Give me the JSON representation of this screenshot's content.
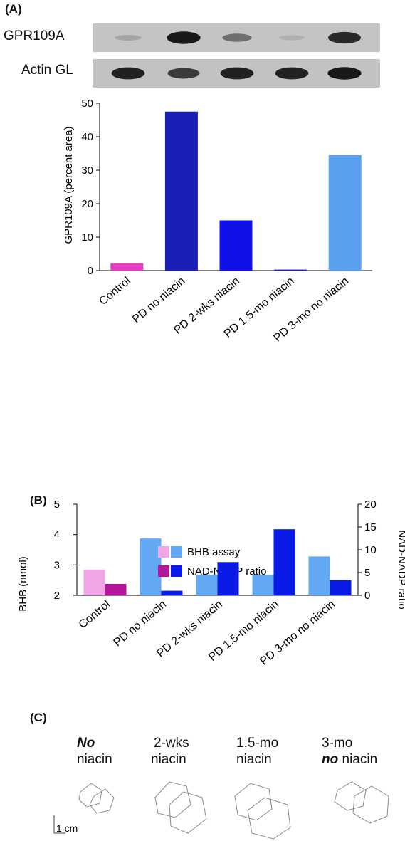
{
  "panels": {
    "a": "(A)",
    "b": "(B)",
    "c": "(C)"
  },
  "blot": {
    "rows": [
      {
        "label": "GPR109A",
        "band_intensity": [
          0.15,
          0.95,
          0.45,
          0.08,
          0.85
        ]
      },
      {
        "label": "Actin GL",
        "band_intensity": [
          0.9,
          0.75,
          0.9,
          0.9,
          0.95
        ]
      }
    ]
  },
  "chart_data": [
    {
      "type": "bar",
      "ylabel": "GPR109A  (percent area)",
      "xlabel": "",
      "ylim": [
        0,
        50
      ],
      "yticks": [
        0,
        10,
        20,
        30,
        40,
        50
      ],
      "categories": [
        "Control",
        "PD no niacin",
        "PD 2-wks niacin",
        "PD 1.5-mo niacin",
        "PD 3-mo no niacin"
      ],
      "values": [
        2.2,
        47.5,
        15.0,
        0.3,
        34.5
      ],
      "colors": [
        "#e23fc4",
        "#1a1fb8",
        "#1010e8",
        "#1a1fb8",
        "#5aa0f0"
      ]
    },
    {
      "type": "bar",
      "ylabel": "BHB (nmol)",
      "y2label": "NAD-NADP ratio",
      "ylim": [
        2,
        5
      ],
      "y2lim": [
        0,
        20
      ],
      "yticks": [
        2,
        3,
        4,
        5
      ],
      "y2ticks": [
        0,
        5,
        10,
        15,
        20
      ],
      "categories": [
        "Control",
        "PD no niacin",
        "PD 2-wks niacin",
        "PD 1.5-mo niacin",
        "PD 3-mo no niacin"
      ],
      "series": [
        {
          "name": "BHB assay",
          "axis": "left",
          "values": [
            2.85,
            3.87,
            2.68,
            2.68,
            3.28
          ],
          "colors": [
            "#f0a6e6",
            "#63a8f2",
            "#63a8f2",
            "#63a8f2",
            "#63a8f2"
          ],
          "legend_swatches": [
            "#f0a6e6",
            "#63a8f2"
          ]
        },
        {
          "name": "NAD-NADP ratio",
          "axis": "right",
          "values": [
            2.5,
            1.0,
            7.3,
            14.5,
            3.3
          ],
          "colors": [
            "#b3169a",
            "#0a1ae6",
            "#0a1ae6",
            "#0a1ae6",
            "#0a1ae6"
          ],
          "legend_swatches": [
            "#b3169a",
            "#0a1ae6"
          ]
        }
      ],
      "legend_position": "top-center"
    }
  ],
  "gait": {
    "conditions": [
      {
        "line1_bold": "No",
        "line1": "",
        "line2_bold": "",
        "line2": "niacin"
      },
      {
        "line1_bold": "",
        "line1": "2-wks",
        "line2_bold": "",
        "line2": "niacin"
      },
      {
        "line1_bold": "",
        "line1": "1.5-mo",
        "line2_bold": "",
        "line2": "niacin"
      },
      {
        "line1_bold": "",
        "line1": "3-mo",
        "line2_bold": "no",
        "line2": " niacin"
      }
    ],
    "scale_label": "1 cm"
  }
}
